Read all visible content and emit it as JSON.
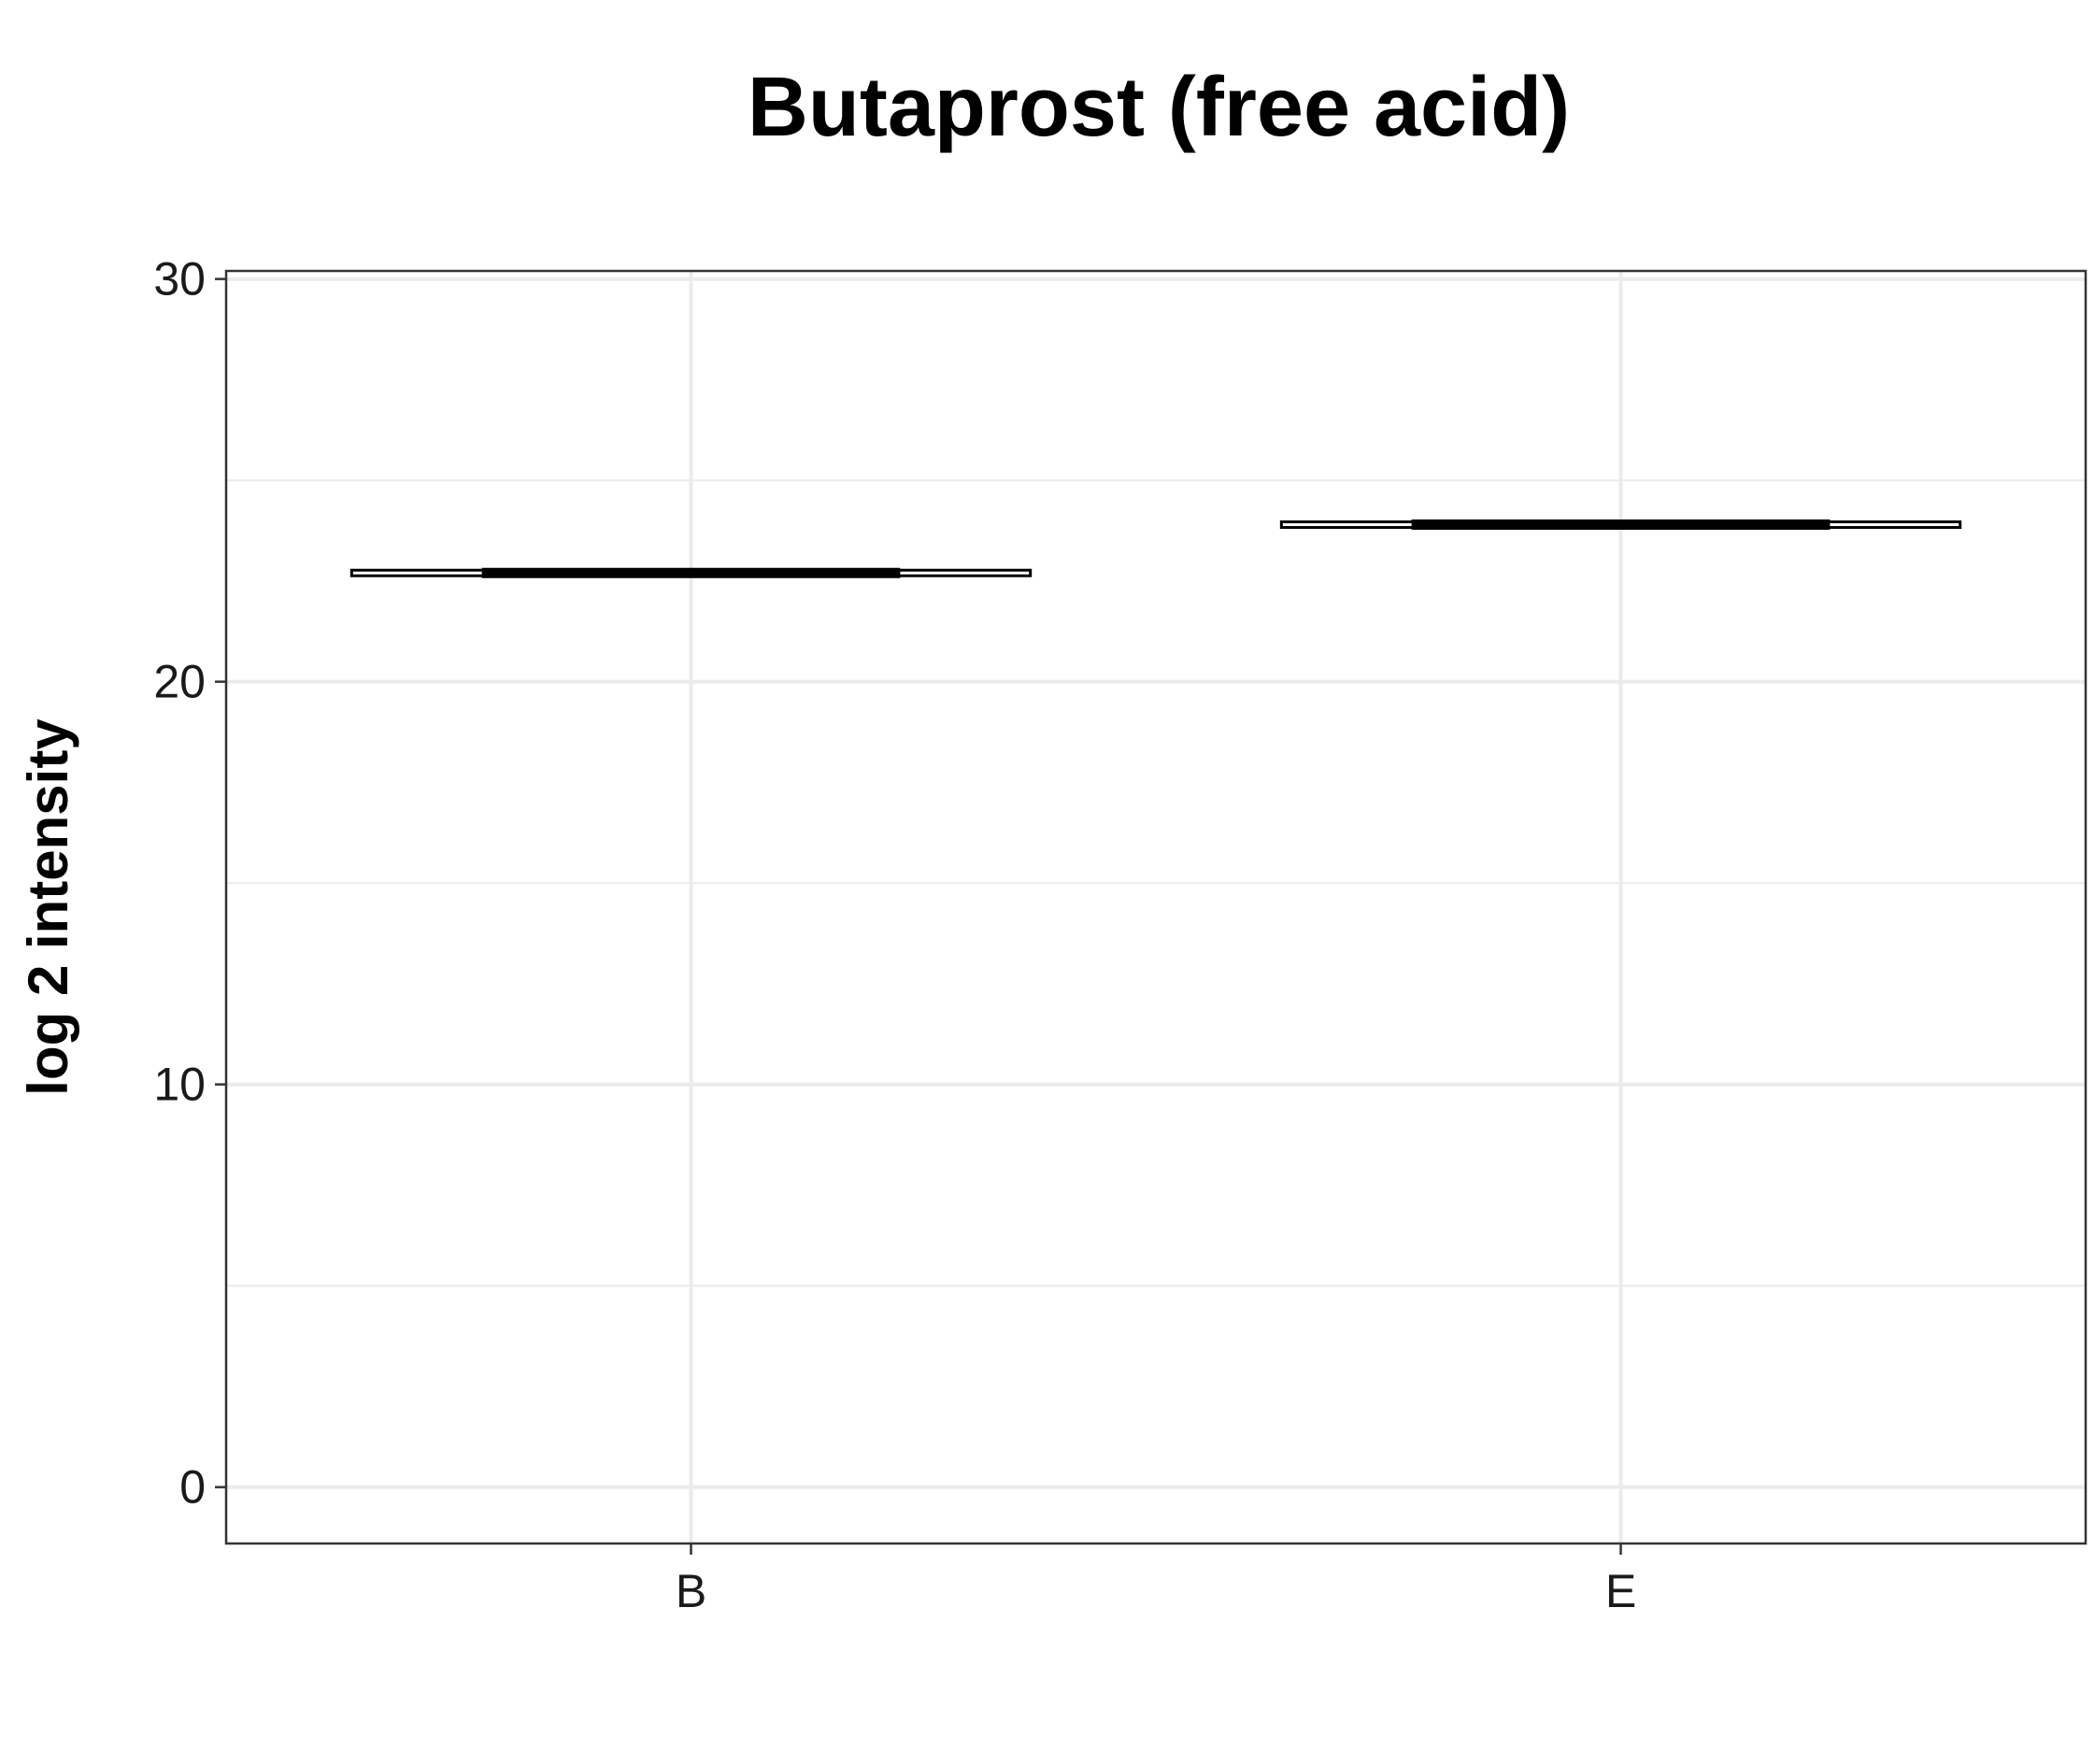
{
  "chart_data": {
    "type": "box",
    "title": "Butaprost (free acid)",
    "xlabel": "",
    "ylabel": "log 2 intensity",
    "categories": [
      "B",
      "E"
    ],
    "ylim": [
      -1.4,
      30.2
    ],
    "yticks": [
      0,
      10,
      20,
      30
    ],
    "minor_yticks": [
      5,
      15,
      25
    ],
    "grid": true,
    "legend": "none",
    "boxes": [
      {
        "category": "B",
        "min": 22.7,
        "q1": 22.7,
        "median": 22.7,
        "q3": 22.7,
        "max": 22.7
      },
      {
        "category": "E",
        "min": 23.9,
        "q1": 23.9,
        "median": 23.9,
        "q3": 23.9,
        "max": 23.9
      }
    ],
    "colors": {
      "box": "#000000",
      "grid": "#ebebeb",
      "panel_border": "#333333",
      "text": "#000000"
    }
  }
}
